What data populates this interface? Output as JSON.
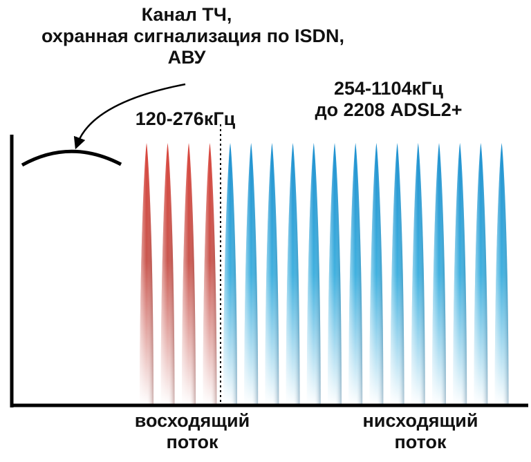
{
  "title": {
    "line1": "Канал ТЧ,",
    "line2": "охранная сигнализация по ISDN,",
    "line3": "АВУ"
  },
  "upstream": {
    "range": "120-276кГц",
    "label_line1": "восходящий",
    "label_line2": "поток",
    "carrier_count": 4,
    "color_top": "#d8433a",
    "color_bottom": "#ffffff"
  },
  "downstream": {
    "range_line1": "254-1104кГц",
    "range_line2": "до 2208 ADSL2+",
    "label_line1": "нисходящий",
    "label_line2": "поток",
    "carrier_count": 14,
    "color_top": "#1b8fcf",
    "color_bottom": "#ffffff"
  },
  "colors": {
    "axis": "#000000",
    "text": "#111111"
  }
}
